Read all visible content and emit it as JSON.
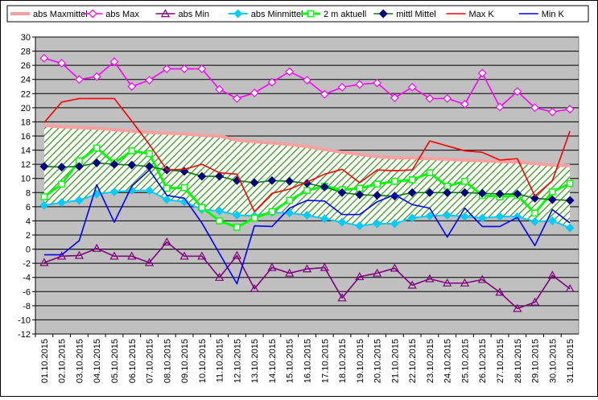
{
  "chart_data": {
    "type": "line",
    "title": "",
    "xlabel": "",
    "ylabel": "",
    "ylim": [
      -12,
      30
    ],
    "ytick_step": 2,
    "grid": "horizontal",
    "plot_background": "#c0c0c0",
    "legend_position": "top",
    "categories": [
      "01.10.2015",
      "02.10.2015",
      "03.10.2015",
      "04.10.2015",
      "05.10.2015",
      "06.10.2015",
      "07.10.2015",
      "08.10.2015",
      "09.10.2015",
      "10.10.2015",
      "11.10.2015",
      "12.10.2015",
      "13.10.2015",
      "14.10.2015",
      "15.10.2015",
      "16.10.2015",
      "17.10.2015",
      "18.10.2015",
      "19.10.2015",
      "20.10.2015",
      "21.10.2015",
      "22.10.2015",
      "23.10.2015",
      "24.10.2015",
      "25.10.2015",
      "26.10.2015",
      "27.10.2015",
      "28.10.2015",
      "29.10.2015",
      "30.10.2015",
      "31.10.2015"
    ],
    "band": {
      "upper": "abs Maxmittel",
      "lower": "abs Minmittel",
      "fill": "#3a9a20 hatch on #ffffff"
    },
    "series": [
      {
        "name": "abs Maxmittel",
        "color": "#ff9f9f",
        "marker": "none",
        "width": 4,
        "values": [
          17.5,
          17.3,
          17.2,
          17.1,
          16.9,
          16.7,
          16.5,
          16.4,
          16.3,
          16.1,
          16.0,
          15.4,
          15.2,
          15.0,
          14.8,
          14.5,
          14.1,
          13.7,
          13.4,
          13.1,
          12.9,
          12.9,
          12.8,
          12.7,
          12.6,
          12.5,
          12.4,
          12.3,
          12.1,
          11.9,
          11.8
        ]
      },
      {
        "name": "abs Max",
        "color": "#ff00ff",
        "marker": "diamond-open",
        "values": [
          27.0,
          26.3,
          24.0,
          24.4,
          26.5,
          23.0,
          23.9,
          25.5,
          25.5,
          25.5,
          22.6,
          21.3,
          22.1,
          23.6,
          25.1,
          23.9,
          21.9,
          22.9,
          23.3,
          23.5,
          21.4,
          22.9,
          21.3,
          21.3,
          20.5,
          24.9,
          20.1,
          22.3,
          20.0,
          19.4,
          19.8
        ]
      },
      {
        "name": "abs Min",
        "color": "#800080",
        "marker": "triangle-open",
        "values": [
          -1.9,
          -1.0,
          -0.9,
          0.1,
          -1.0,
          -1.0,
          -1.9,
          1.0,
          -1.0,
          -1.0,
          -4.0,
          -0.9,
          -5.6,
          -2.6,
          -3.4,
          -2.8,
          -2.6,
          -6.9,
          -3.9,
          -3.4,
          -2.7,
          -5.1,
          -4.2,
          -4.8,
          -4.8,
          -4.3,
          -6.1,
          -8.4,
          -7.5,
          -3.7,
          -5.6
        ]
      },
      {
        "name": "abs Minmittel",
        "color": "#00ccff",
        "marker": "diamond-solid",
        "width": 2,
        "values": [
          6.2,
          6.6,
          6.9,
          7.8,
          8.1,
          8.3,
          8.3,
          7.0,
          6.7,
          5.6,
          5.4,
          4.8,
          4.7,
          5.2,
          5.1,
          4.8,
          4.3,
          3.8,
          3.3,
          3.6,
          3.6,
          4.4,
          4.7,
          4.8,
          4.6,
          4.4,
          4.6,
          4.6,
          3.9,
          4.0,
          3.0
        ]
      },
      {
        "name": "2 m aktuell",
        "color": "#00ff00",
        "marker": "square-open",
        "width": 3,
        "values": [
          7.4,
          9.2,
          12.5,
          14.3,
          12.2,
          13.9,
          13.5,
          8.6,
          8.7,
          5.9,
          4.0,
          3.1,
          4.4,
          5.3,
          6.9,
          8.3,
          8.9,
          8.4,
          8.6,
          9.2,
          9.6,
          9.8,
          10.8,
          8.9,
          9.6,
          7.6,
          7.4,
          7.6,
          5.1,
          8.1,
          9.3
        ]
      },
      {
        "name": "mittl Mittel",
        "color": "#000080",
        "marker": "diamond-solid",
        "line_color": "#008000",
        "values": [
          11.7,
          11.6,
          11.7,
          12.2,
          12.0,
          11.9,
          11.7,
          11.2,
          11.0,
          10.3,
          10.3,
          9.7,
          9.4,
          9.7,
          9.6,
          9.3,
          8.8,
          8.0,
          7.7,
          7.6,
          7.5,
          8.0,
          8.0,
          8.0,
          8.0,
          7.9,
          7.8,
          7.8,
          7.2,
          7.0,
          6.9
        ]
      },
      {
        "name": "Max K",
        "color": "#ff0000",
        "marker": "none",
        "values": [
          17.9,
          20.8,
          21.3,
          21.3,
          21.3,
          18.1,
          14.8,
          11.2,
          11.3,
          12.0,
          10.8,
          10.6,
          5.3,
          7.9,
          8.5,
          9.5,
          10.6,
          11.3,
          9.4,
          11.2,
          11.1,
          11.2,
          15.3,
          14.6,
          13.9,
          13.7,
          12.6,
          12.8,
          7.5,
          9.7,
          16.7
        ]
      },
      {
        "name": "Min K",
        "color": "#0000ff",
        "marker": "none",
        "values": [
          -0.8,
          -0.8,
          1.2,
          9.1,
          3.8,
          8.9,
          11.2,
          7.6,
          7.2,
          3.7,
          -0.6,
          -4.9,
          3.3,
          3.2,
          5.8,
          6.9,
          6.8,
          4.9,
          4.9,
          6.7,
          7.7,
          6.3,
          5.8,
          1.7,
          5.8,
          3.2,
          3.2,
          4.5,
          0.5,
          5.6,
          3.7
        ]
      }
    ]
  }
}
